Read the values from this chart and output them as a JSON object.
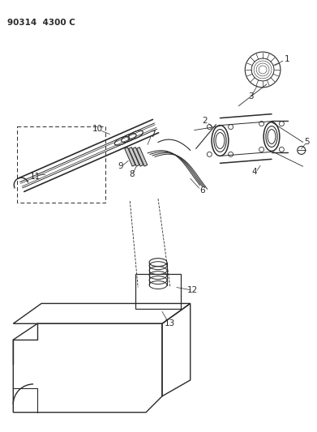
{
  "title": "90314  4300 C",
  "bg_color": "#ffffff",
  "line_color": "#2a2a2a",
  "text_color": "#2a2a2a",
  "title_fontsize": 7.5,
  "label_fontsize": 7.5,
  "fig_width": 3.91,
  "fig_height": 5.33,
  "dpi": 100
}
